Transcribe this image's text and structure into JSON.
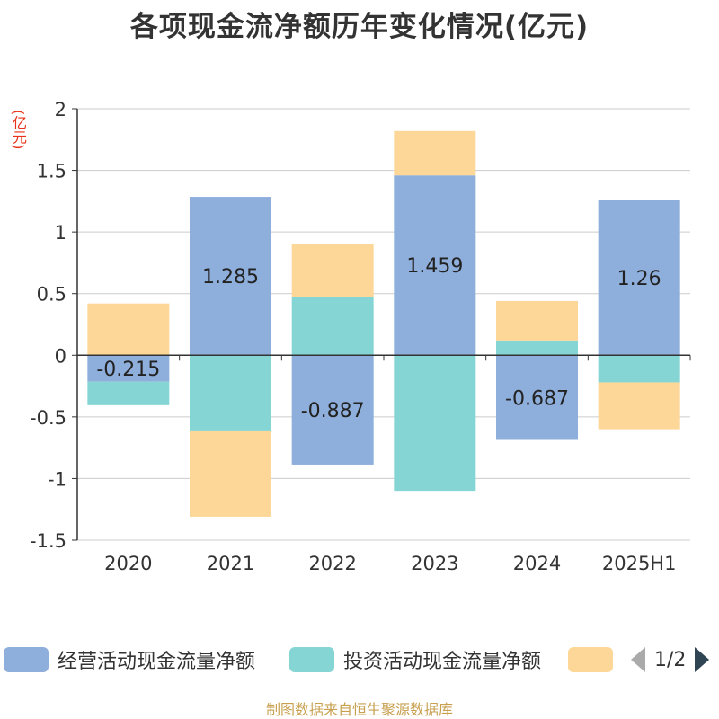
{
  "title": "各项现金流净额历年变化情况(亿元)",
  "unit_label": "(亿元)",
  "legend": {
    "items": [
      {
        "label": "经营活动现金流量净额",
        "color": "#8eaedb"
      },
      {
        "label": "投资活动现金流量净额",
        "color": "#85d5d5"
      },
      {
        "label": "",
        "color": "#fdd797"
      }
    ],
    "page": "1/2"
  },
  "source": "制图数据来自恒生聚源数据库",
  "chart_data": {
    "type": "bar",
    "stacked": true,
    "categories": [
      "2020",
      "2021",
      "2022",
      "2023",
      "2024",
      "2025H1"
    ],
    "ylim": [
      -1.5,
      2
    ],
    "yticks": [
      "2",
      "1.5",
      "1",
      "0.5",
      "0",
      "-0.5",
      "-1",
      "-1.5"
    ],
    "grid": true,
    "legend_position": "bottom",
    "series": [
      {
        "name": "经营活动现金流量净额",
        "color": "#8eaedb",
        "values": [
          -0.215,
          1.285,
          -0.887,
          1.459,
          -0.687,
          1.26
        ],
        "labels": [
          "-0.215",
          "1.285",
          "-0.887",
          "1.459",
          "-0.687",
          "1.26"
        ]
      },
      {
        "name": "投资活动现金流量净额",
        "color": "#85d5d5",
        "values": [
          -0.19,
          -0.61,
          0.47,
          -1.1,
          0.12,
          -0.22
        ]
      },
      {
        "color": "#fdd797",
        "values": [
          0.42,
          -0.7,
          0.43,
          0.36,
          0.32,
          -0.38
        ]
      }
    ]
  }
}
